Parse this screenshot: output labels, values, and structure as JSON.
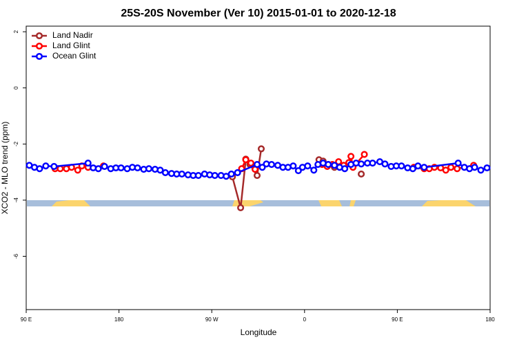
{
  "chart_data": {
    "type": "line",
    "title": "25S-20S November (Ver 10)   2015-01-01 to 2020-12-18",
    "xlabel": "Longitude",
    "ylabel": "XCO2 - MLO trend (ppm)",
    "xlim": [
      90,
      540
    ],
    "ylim": [
      -7.9,
      2.2
    ],
    "xticks": [
      {
        "value": 90,
        "label": "90 E"
      },
      180,
      {
        "value": 270,
        "label": "90 W"
      },
      {
        "value": 360,
        "label": "0"
      },
      {
        "value": 450,
        "label": "90 E"
      },
      {
        "value": 540,
        "label": "180"
      }
    ],
    "yticks": [
      2,
      0,
      -2,
      -4,
      -6
    ],
    "legend": "top-left",
    "series": [
      {
        "name": "Land Nadir",
        "color": "#a52a2a",
        "x": [
          290,
          298,
          303,
          307,
          314,
          318,
          null,
          374,
          378,
          383,
          389,
          393,
          null,
          415
        ],
        "values": [
          -3.17,
          -4.27,
          -2.54,
          -2.73,
          -3.12,
          -2.17,
          null,
          -2.56,
          -2.61,
          -2.73,
          -2.83,
          -2.76,
          null,
          -3.07
        ]
      },
      {
        "name": "Land Glint",
        "color": "#ff0000",
        "x": [
          118,
          123,
          129,
          134,
          140,
          144,
          150,
          165,
          null,
          299,
          303,
          308,
          312,
          null,
          377,
          382,
          387,
          393,
          398,
          403,
          405,
          407,
          418,
          null,
          466,
          476,
          481,
          486,
          492,
          497,
          502,
          508,
          524
        ],
        "values": [
          -2.88,
          -2.88,
          -2.88,
          -2.83,
          -2.93,
          -2.78,
          -2.83,
          -2.78,
          null,
          -2.88,
          -2.56,
          -2.68,
          -2.9,
          null,
          -2.73,
          -2.8,
          -2.73,
          -2.63,
          -2.76,
          -2.66,
          -2.44,
          -2.83,
          -2.37,
          null,
          -2.83,
          -2.88,
          -2.88,
          -2.83,
          -2.85,
          -2.93,
          -2.83,
          -2.88,
          -2.76
        ]
      },
      {
        "name": "Ocean Glint",
        "color": "#0000ff",
        "x": [
          93,
          98,
          103,
          109,
          117,
          150,
          155,
          160,
          166,
          172,
          177,
          182,
          188,
          193,
          198,
          204,
          209,
          215,
          220,
          225,
          231,
          236,
          241,
          247,
          252,
          257,
          263,
          268,
          273,
          279,
          284,
          289,
          295,
          314,
          319,
          323,
          328,
          334,
          339,
          344,
          349,
          354,
          358,
          363,
          369,
          373,
          378,
          383,
          389,
          394,
          399,
          405,
          410,
          415,
          421,
          426,
          433,
          438,
          444,
          449,
          454,
          460,
          465,
          470,
          476,
          509,
          515,
          520,
          525,
          531,
          537
        ],
        "values": [
          -2.76,
          -2.83,
          -2.88,
          -2.78,
          -2.8,
          -2.68,
          -2.85,
          -2.88,
          -2.8,
          -2.88,
          -2.85,
          -2.85,
          -2.88,
          -2.83,
          -2.85,
          -2.9,
          -2.88,
          -2.9,
          -2.93,
          -3.02,
          -3.05,
          -3.07,
          -3.07,
          -3.1,
          -3.12,
          -3.12,
          -3.07,
          -3.1,
          -3.12,
          -3.12,
          -3.15,
          -3.07,
          -3.02,
          -2.73,
          -2.83,
          -2.71,
          -2.73,
          -2.76,
          -2.83,
          -2.83,
          -2.78,
          -2.95,
          -2.83,
          -2.78,
          -2.93,
          -2.73,
          -2.68,
          -2.73,
          -2.76,
          -2.83,
          -2.88,
          -2.73,
          -2.68,
          -2.71,
          -2.68,
          -2.68,
          -2.63,
          -2.71,
          -2.8,
          -2.78,
          -2.78,
          -2.85,
          -2.88,
          -2.78,
          -2.83,
          -2.68,
          -2.83,
          -2.88,
          -2.83,
          -2.93,
          -2.85
        ]
      }
    ]
  }
}
